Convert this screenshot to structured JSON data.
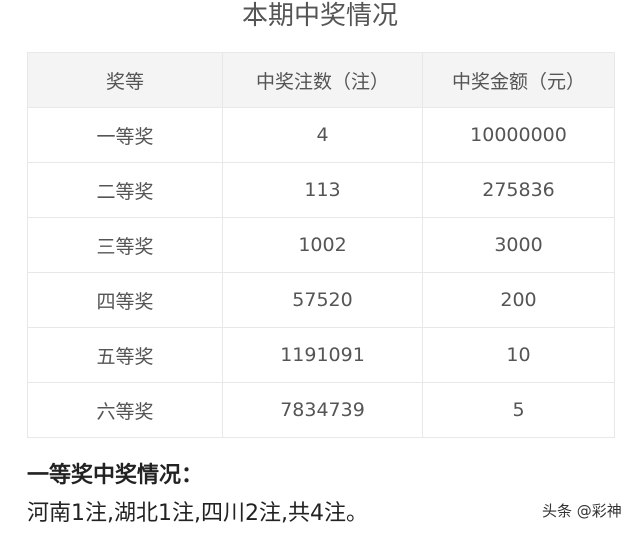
{
  "title": "本期中奖情况",
  "table": {
    "headers": [
      "奖等",
      "中奖注数（注）",
      "中奖金额（元）"
    ],
    "rows": [
      [
        "一等奖",
        "4",
        "10000000"
      ],
      [
        "二等奖",
        "113",
        "275836"
      ],
      [
        "三等奖",
        "1002",
        "3000"
      ],
      [
        "四等奖",
        "57520",
        "200"
      ],
      [
        "五等奖",
        "1191091",
        "10"
      ],
      [
        "六等奖",
        "7834739",
        "5"
      ]
    ]
  },
  "first_prize": {
    "heading": "一等奖中奖情况：",
    "detail": "河南1注,湖北1注,四川2注,共4注。"
  },
  "watermark": "头条 @彩神"
}
